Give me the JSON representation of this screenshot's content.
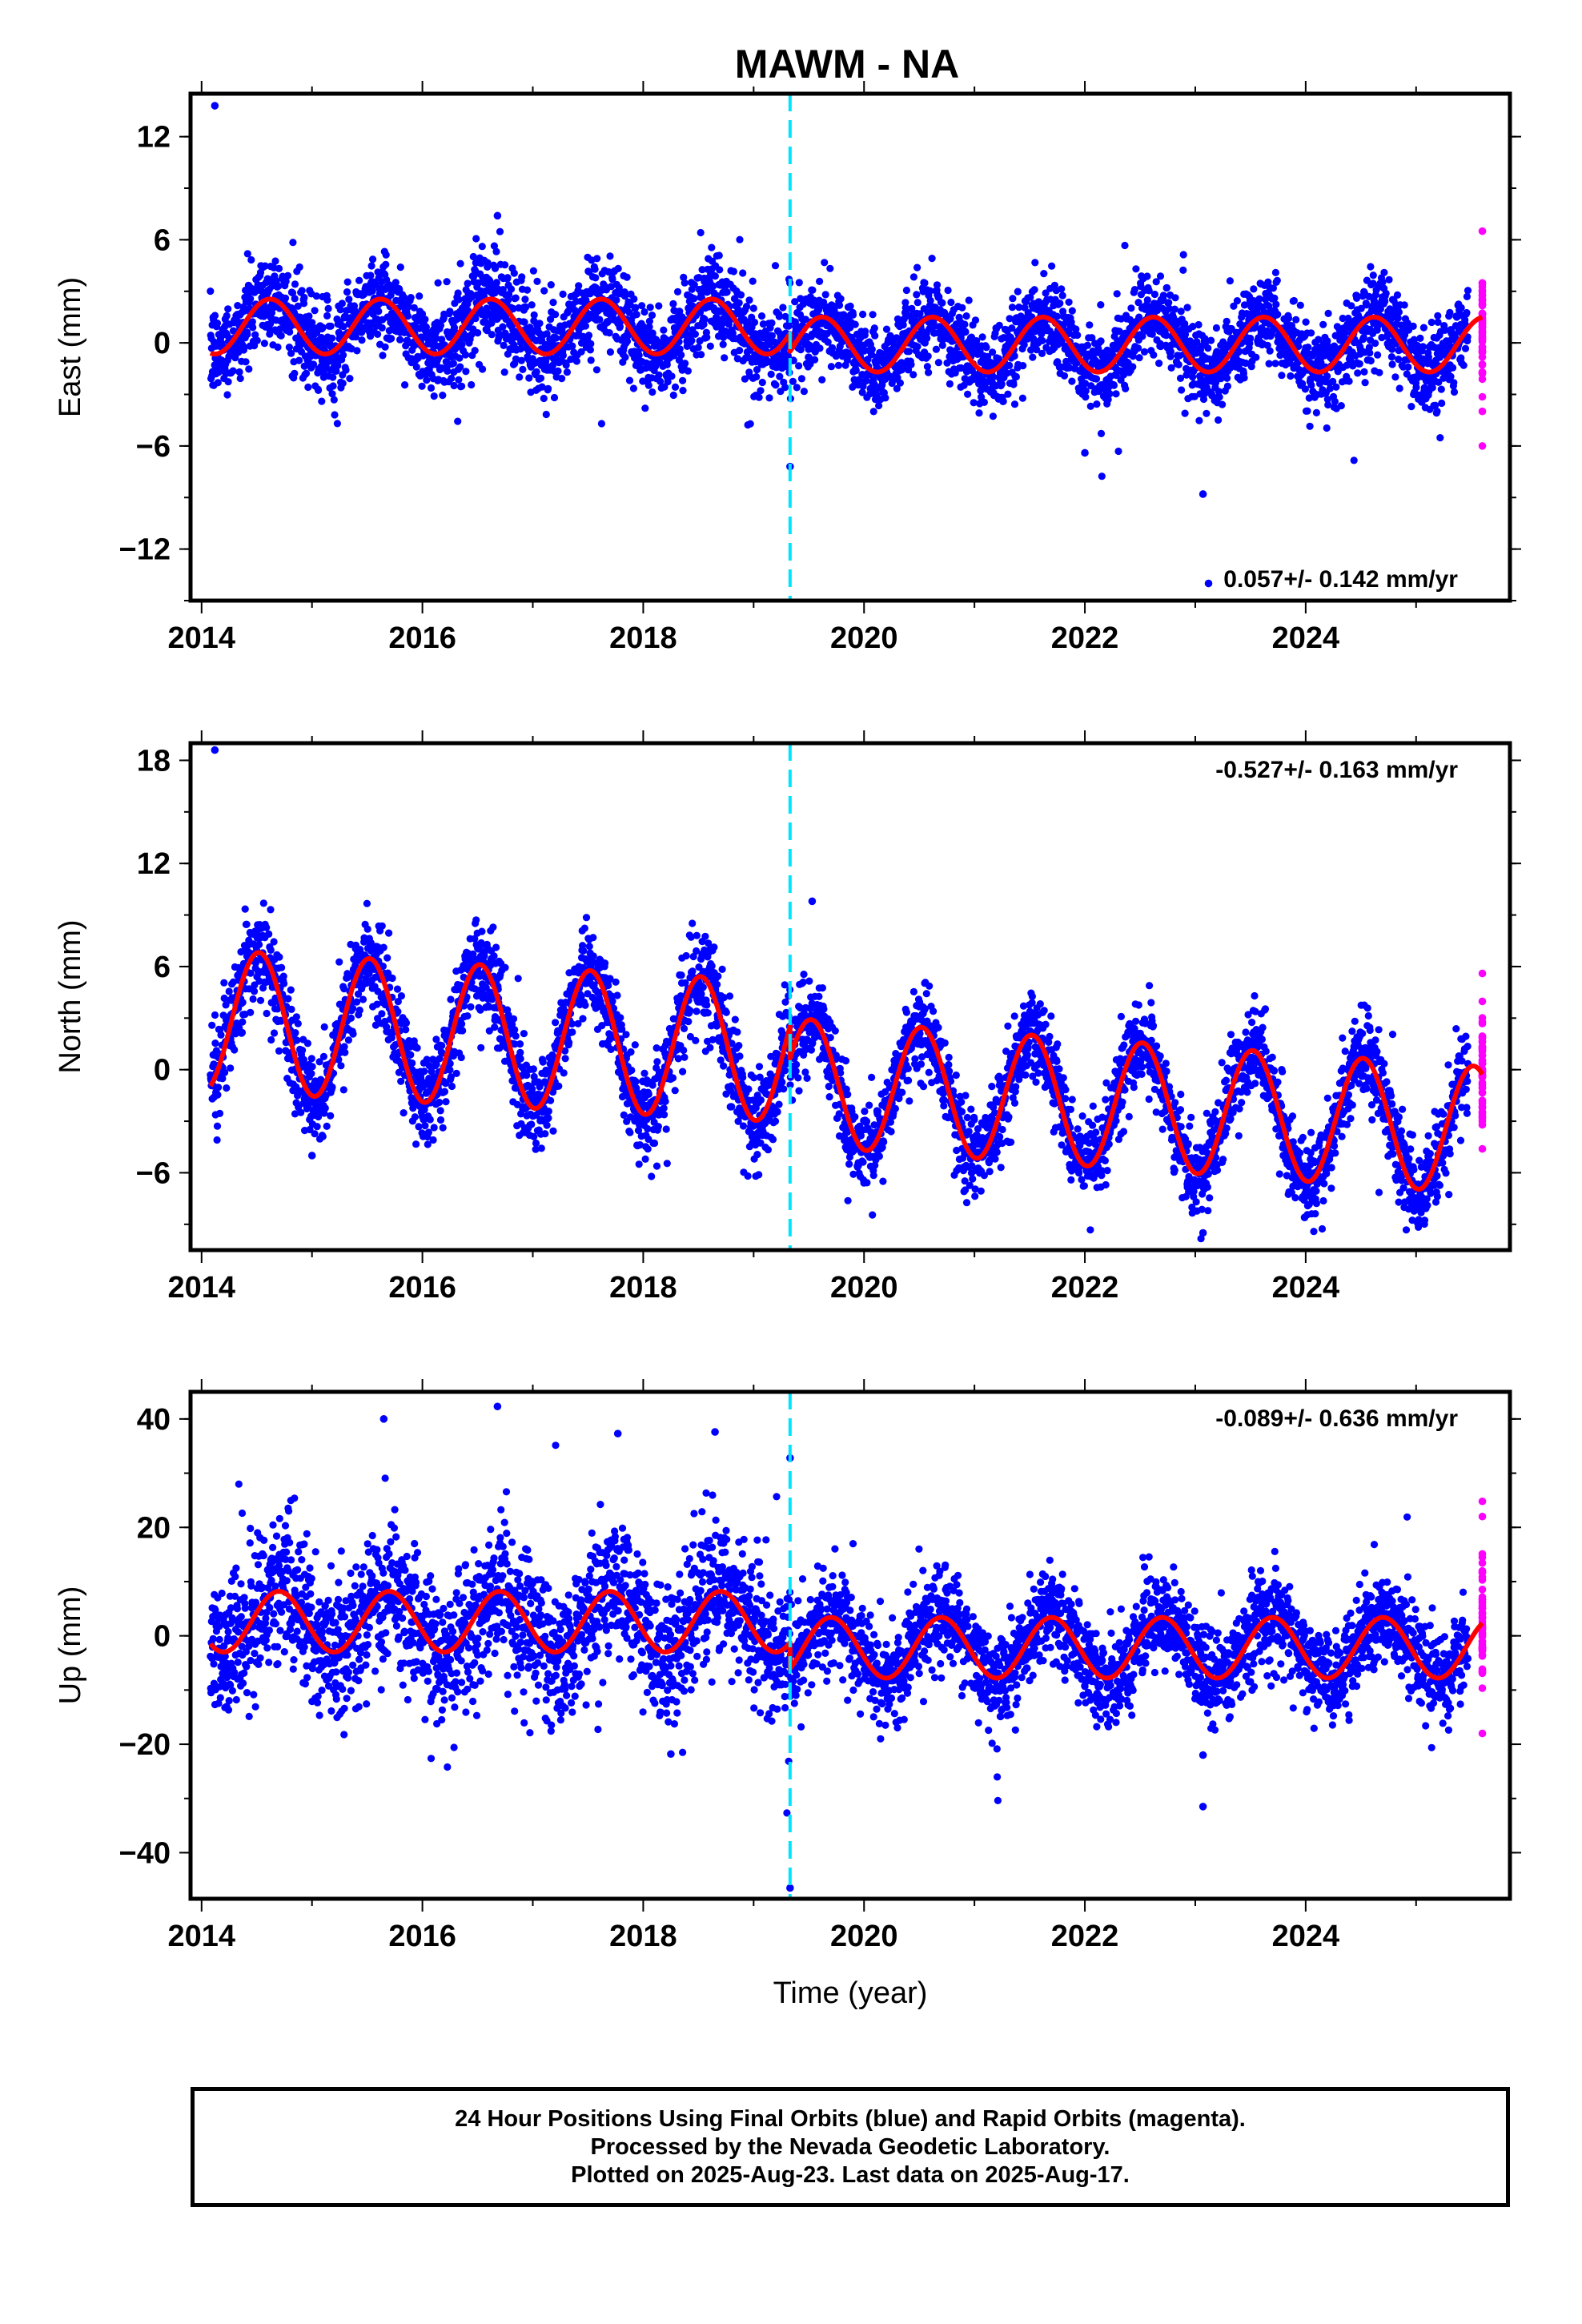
{
  "title": "MAWM - NA",
  "caption": {
    "line1": "24 Hour Positions Using Final Orbits (blue) and Rapid Orbits (magenta).",
    "line2": "Processed by the Nevada Geodetic Laboratory.",
    "line3": "Plotted on 2025-Aug-23. Last data on 2025-Aug-17."
  },
  "colors": {
    "final_orbits": "#0000ff",
    "rapid_orbits": "#ff00ff",
    "model_fit": "#ff0000",
    "equipment_change": "#00e5ff"
  },
  "chart_data": [
    {
      "type": "scatter",
      "ylabel": "East (mm)",
      "xlabel": "",
      "xlim": [
        2013.9,
        2025.85
      ],
      "ylim": [
        -15,
        14.5
      ],
      "x_ticks": [
        "2014",
        "2016",
        "2018",
        "2020",
        "2022",
        "2024"
      ],
      "y_ticks": [
        "12",
        "6",
        "0",
        "−6",
        "−12"
      ],
      "y_tick_values": [
        12,
        6,
        0,
        -6,
        -12
      ],
      "rate_text": "0.057+/- 0.142 mm/yr",
      "rate_position": "bottom-right",
      "step_epoch": 2019.33,
      "model": {
        "pre": {
          "offset": 0.95,
          "trend": 0.0,
          "amp": 1.6,
          "peak_phase": 0.62
        },
        "post": {
          "offset": -0.1,
          "trend": 0.0,
          "amp": 1.6,
          "peak_phase": 0.62
        }
      },
      "scatter": {
        "sigma_pre": 1.3,
        "sigma_post": 1.2
      },
      "outliers": [
        [
          2014.12,
          13.8
        ],
        [
          2016.68,
          7.4
        ],
        [
          2019.33,
          -7.2
        ],
        [
          2023.07,
          -8.8
        ],
        [
          2023.12,
          -14.0
        ],
        [
          2022.0,
          -6.4
        ]
      ],
      "rapid_range": [
        2025.48,
        2025.62
      ],
      "rapid_outliers": [
        [
          2025.6,
          6.5
        ],
        [
          2025.6,
          -6.0
        ]
      ]
    },
    {
      "type": "scatter",
      "ylabel": "North (mm)",
      "xlabel": "",
      "xlim": [
        2013.9,
        2025.85
      ],
      "ylim": [
        -10.5,
        19
      ],
      "x_ticks": [
        "2014",
        "2016",
        "2018",
        "2020",
        "2022",
        "2024"
      ],
      "y_ticks": [
        "18",
        "12",
        "6",
        "0",
        "−6"
      ],
      "y_tick_values": [
        18,
        12,
        6,
        0,
        -6
      ],
      "rate_text": "-0.527+/- 0.163 mm/yr",
      "rate_position": "top-right",
      "step_epoch": 2019.33,
      "model": {
        "pre": {
          "offset": 2.9,
          "trend": -0.35,
          "amp": 4.1,
          "peak_phase": 0.52
        },
        "post": {
          "offset": 1.7,
          "trend": -0.45,
          "amp": 3.7,
          "peak_phase": 0.52
        }
      },
      "scatter": {
        "sigma_pre": 1.3,
        "sigma_post": 1.2
      },
      "outliers": [
        [
          2014.12,
          18.6
        ],
        [
          2023.07,
          -9.5
        ],
        [
          2023.99,
          -8.6
        ],
        [
          2019.53,
          9.8
        ],
        [
          2015.0,
          -5.0
        ]
      ],
      "rapid_range": [
        2025.48,
        2025.62
      ],
      "rapid_outliers": [
        [
          2025.6,
          5.6
        ],
        [
          2025.6,
          -2.2
        ]
      ]
    },
    {
      "type": "scatter",
      "ylabel": "Up (mm)",
      "xlabel": "Time (year)",
      "xlim": [
        2013.9,
        2025.85
      ],
      "ylim": [
        -48.5,
        45
      ],
      "x_ticks": [
        "2014",
        "2016",
        "2018",
        "2020",
        "2022",
        "2024"
      ],
      "y_ticks": [
        "40",
        "20",
        "0",
        "−20",
        "−40"
      ],
      "y_tick_values": [
        40,
        20,
        0,
        -20,
        -40
      ],
      "rate_text": "-0.089+/- 0.636 mm/yr",
      "rate_position": "top-right",
      "step_epoch": 2019.33,
      "model": {
        "pre": {
          "offset": 2.6,
          "trend": 0.0,
          "amp": 5.6,
          "peak_phase": 0.7
        },
        "post": {
          "offset": -2.2,
          "trend": 0.0,
          "amp": 5.6,
          "peak_phase": 0.7
        }
      },
      "scatter": {
        "sigma_pre": 6.5,
        "sigma_post": 4.3
      },
      "outliers": [
        [
          2015.65,
          40.0
        ],
        [
          2016.68,
          42.3
        ],
        [
          2017.77,
          37.3
        ],
        [
          2018.65,
          37.6
        ],
        [
          2019.33,
          32.8
        ],
        [
          2019.33,
          -46.5
        ],
        [
          2023.07,
          -31.5
        ],
        [
          2023.07,
          -22.0
        ],
        [
          2018.25,
          -21.8
        ]
      ],
      "rapid_range": [
        2025.48,
        2025.62
      ],
      "rapid_outliers": [
        [
          2025.6,
          24.8
        ],
        [
          2025.6,
          -18.0
        ],
        [
          2025.6,
          22.0
        ]
      ]
    }
  ]
}
